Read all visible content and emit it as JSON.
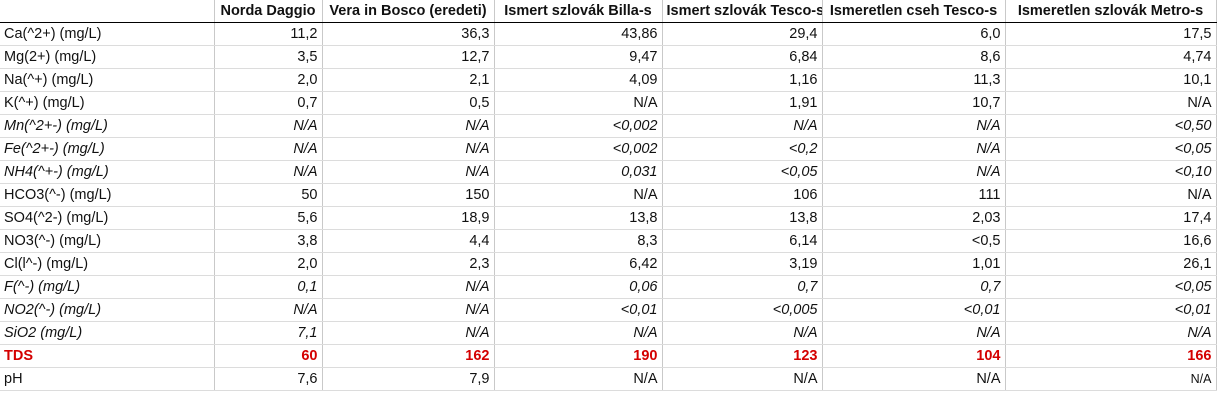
{
  "headers": [
    "",
    "Norda Daggio",
    "Vera in Bosco (eredeti)",
    "Ismert szlovák Billa-s",
    "Ismert szlovák Tesco-s",
    "Ismeretlen cseh Tesco-s",
    "Ismeretlen szlovák Metro-s"
  ],
  "rows": [
    {
      "label": "Ca(^2+) (mg/L)",
      "values": [
        "11,2",
        "36,3",
        "43,86",
        "29,4",
        "6,0",
        "17,5"
      ]
    },
    {
      "label": "Mg(2+) (mg/L)",
      "values": [
        "3,5",
        "12,7",
        "9,47",
        "6,84",
        "8,6",
        "4,74"
      ]
    },
    {
      "label": "Na(^+) (mg/L)",
      "values": [
        "2,0",
        "2,1",
        "4,09",
        "1,16",
        "11,3",
        "10,1"
      ]
    },
    {
      "label": "K(^+) (mg/L)",
      "values": [
        "0,7",
        "0,5",
        "N/A",
        "1,91",
        "10,7",
        "N/A"
      ]
    },
    {
      "label": "Mn(^2+-) (mg/L)",
      "values": [
        "N/A",
        "N/A",
        "<0,002",
        "N/A",
        "N/A",
        "<0,50"
      ]
    },
    {
      "label": "Fe(^2+-) (mg/L)",
      "values": [
        "N/A",
        "N/A",
        "<0,002",
        "<0,2",
        "N/A",
        "<0,05"
      ]
    },
    {
      "label": "NH4(^+-) (mg/L)",
      "values": [
        "N/A",
        "N/A",
        "0,031",
        "<0,05",
        "N/A",
        "<0,10"
      ]
    },
    {
      "label": "HCO3(^-) (mg/L)",
      "values": [
        "50",
        "150",
        "N/A",
        "106",
        "111",
        "N/A"
      ]
    },
    {
      "label": "SO4(^2-) (mg/L)",
      "values": [
        "5,6",
        "18,9",
        "13,8",
        "13,8",
        "2,03",
        "17,4"
      ]
    },
    {
      "label": "NO3(^-) (mg/L)",
      "values": [
        "3,8",
        "4,4",
        "8,3",
        "6,14",
        "<0,5",
        "16,6"
      ]
    },
    {
      "label": "Cl(l^-) (mg/L)",
      "values": [
        "2,0",
        "2,3",
        "6,42",
        "3,19",
        "1,01",
        "26,1"
      ]
    },
    {
      "label": "F(^-) (mg/L)",
      "values": [
        "0,1",
        "N/A",
        "0,06",
        "0,7",
        "0,7",
        "<0,05"
      ]
    },
    {
      "label": "NO2(^-) (mg/L)",
      "values": [
        "N/A",
        "N/A",
        "<0,01",
        "<0,005",
        "<0,01",
        "<0,01"
      ]
    },
    {
      "label": "SiO2 (mg/L)",
      "values": [
        "7,1",
        "N/A",
        "N/A",
        "N/A",
        "N/A",
        "N/A"
      ]
    },
    {
      "label": "TDS",
      "values": [
        "60",
        "162",
        "190",
        "123",
        "104",
        "166"
      ]
    },
    {
      "label": "pH",
      "values": [
        "7,6",
        "7,9",
        "N/A",
        "N/A",
        "N/A",
        "N/A"
      ]
    }
  ],
  "colors": {
    "tds_accent": "#d40000",
    "rule": "#000000",
    "grid": "#c9c9c9"
  }
}
